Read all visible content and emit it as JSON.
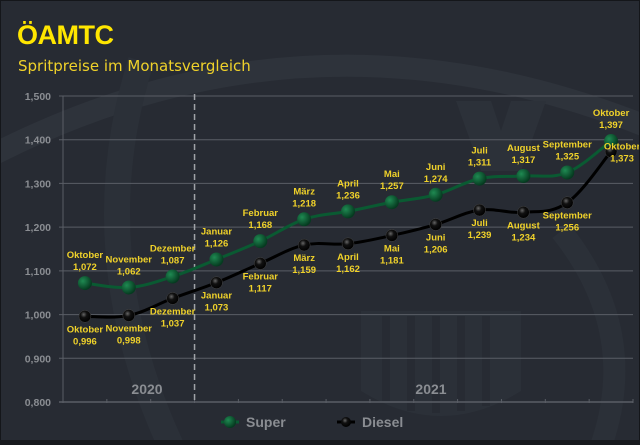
{
  "header": {
    "logo": "ÖAMTC",
    "subtitle": "Spritpreise im Monatsvergleich"
  },
  "colors": {
    "background": "#272b33",
    "accent_yellow": "#f0d22a",
    "super": "#0a5a32",
    "diesel": "#000000",
    "axis_text": "#8a8d92",
    "grid": "#5a5e66"
  },
  "chart_data": {
    "type": "line",
    "title": "Spritpreise im Monatsvergleich",
    "xlabel": "",
    "ylabel": "",
    "ylim": [
      0.8,
      1.5
    ],
    "yticks": [
      "1,500",
      "1,400",
      "1,300",
      "1,200",
      "1,100",
      "1,000",
      "0,900",
      "0,800"
    ],
    "year_labels": [
      {
        "label": "2020",
        "position": "left of divider"
      },
      {
        "label": "2021",
        "position": "right of divider"
      }
    ],
    "grid": true,
    "legend_position": "bottom",
    "categories": [
      "Oktober",
      "November",
      "Dezember",
      "Januar",
      "Februar",
      "März",
      "April",
      "Mai",
      "Juni",
      "Juli",
      "August",
      "September",
      "Oktober"
    ],
    "series": [
      {
        "name": "Super",
        "values": [
          1.072,
          1.062,
          1.087,
          1.126,
          1.168,
          1.218,
          1.236,
          1.257,
          1.274,
          1.311,
          1.317,
          1.325,
          1.397
        ],
        "labels": [
          "1,072",
          "1,062",
          "1,087",
          "1,126",
          "1,168",
          "1,218",
          "1,236",
          "1,257",
          "1,274",
          "1,311",
          "1,317",
          "1,325",
          "1,397"
        ]
      },
      {
        "name": "Diesel",
        "values": [
          0.996,
          0.998,
          1.037,
          1.073,
          1.117,
          1.159,
          1.162,
          1.181,
          1.206,
          1.239,
          1.234,
          1.256,
          1.373
        ],
        "labels": [
          "0,996",
          "0,998",
          "1,037",
          "1,073",
          "1,117",
          "1,159",
          "1,162",
          "1,181",
          "1,206",
          "1,239",
          "1,234",
          "1,256",
          "1,373"
        ]
      }
    ]
  },
  "legend": {
    "items": [
      {
        "name": "Super",
        "icon": "green-dot-line-icon"
      },
      {
        "name": "Diesel",
        "icon": "black-dot-line-icon"
      }
    ]
  }
}
